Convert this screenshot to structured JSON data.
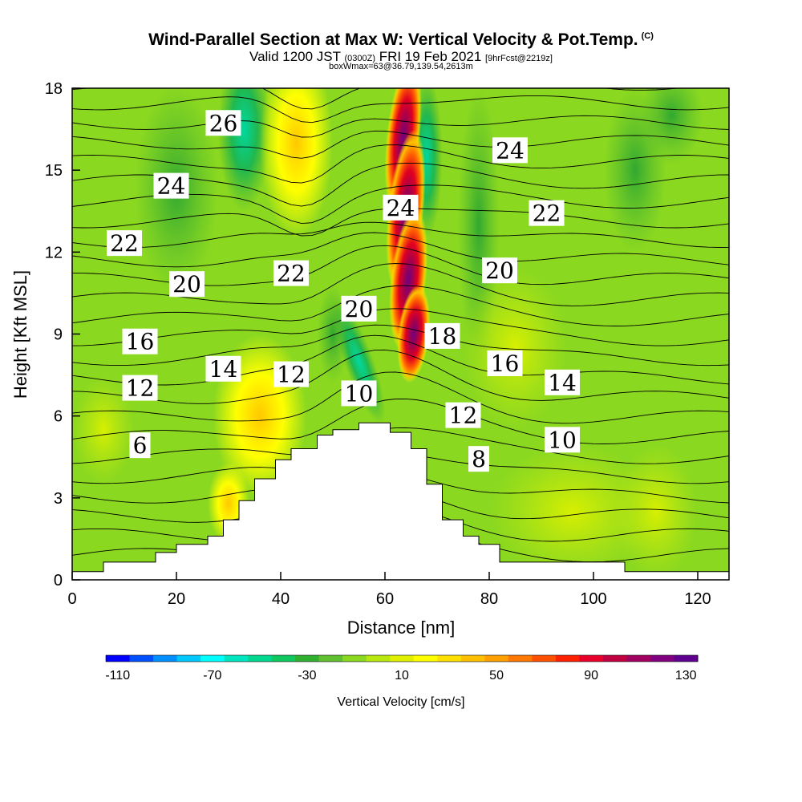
{
  "header": {
    "title": "Wind-Parallel Section at Max W: Vertical Velocity & Pot.Temp.",
    "copyright": "(C)",
    "valid_prefix": "Valid 1200 JST",
    "valid_utc": "(0300Z)",
    "valid_date": "FRI 19 Feb 2021",
    "forecast": "[9hrFcst@2219z]",
    "box_info": "boxWmax=63@36.79,139.54,2613m"
  },
  "chart_data": {
    "type": "heatmap",
    "xlabel": "Distance [nm]",
    "ylabel": "Height [Kft MSL]",
    "xlim": [
      0,
      126
    ],
    "ylim": [
      0,
      18
    ],
    "x_ticks": [
      0,
      20,
      40,
      60,
      80,
      100,
      120
    ],
    "y_ticks": [
      0,
      3,
      6,
      9,
      12,
      15,
      18
    ],
    "grid": false,
    "terrain_profile": [
      [
        0,
        0.3
      ],
      [
        6,
        0.3
      ],
      [
        6,
        0.65
      ],
      [
        16,
        0.65
      ],
      [
        16,
        1
      ],
      [
        20,
        1
      ],
      [
        20,
        1.3
      ],
      [
        26,
        1.3
      ],
      [
        26,
        1.6
      ],
      [
        29,
        1.6
      ],
      [
        29,
        2.2
      ],
      [
        32,
        2.2
      ],
      [
        32,
        2.9
      ],
      [
        35,
        2.9
      ],
      [
        35,
        3.7
      ],
      [
        39,
        3.7
      ],
      [
        39,
        4.4
      ],
      [
        42,
        4.4
      ],
      [
        42,
        4.8
      ],
      [
        47,
        4.8
      ],
      [
        47,
        5.3
      ],
      [
        50,
        5.3
      ],
      [
        50,
        5.5
      ],
      [
        55,
        5.5
      ],
      [
        55,
        5.75
      ],
      [
        61,
        5.75
      ],
      [
        61,
        5.4
      ],
      [
        65,
        5.4
      ],
      [
        65,
        4.8
      ],
      [
        68,
        4.8
      ],
      [
        68,
        3.5
      ],
      [
        71,
        3.5
      ],
      [
        71,
        2.2
      ],
      [
        75,
        2.2
      ],
      [
        75,
        1.6
      ],
      [
        78,
        1.6
      ],
      [
        78,
        1.3
      ],
      [
        82,
        1.3
      ],
      [
        82,
        0.65
      ],
      [
        106,
        0.65
      ],
      [
        106,
        0.3
      ],
      [
        126,
        0.3
      ]
    ],
    "updraft_core": {
      "x_center": 64,
      "peak_value": 130,
      "units": "cm/s"
    },
    "isentrope_labels": [
      {
        "text": "26",
        "x": 29,
        "y": 16.7
      },
      {
        "text": "24",
        "x": 19,
        "y": 14.4
      },
      {
        "text": "22",
        "x": 10,
        "y": 12.3
      },
      {
        "text": "20",
        "x": 22,
        "y": 10.8
      },
      {
        "text": "16",
        "x": 13,
        "y": 8.7
      },
      {
        "text": "12",
        "x": 13,
        "y": 7.0
      },
      {
        "text": "6",
        "x": 13,
        "y": 4.9
      },
      {
        "text": "14",
        "x": 29,
        "y": 7.7
      },
      {
        "text": "12",
        "x": 42,
        "y": 7.5
      },
      {
        "text": "22",
        "x": 42,
        "y": 11.2
      },
      {
        "text": "20",
        "x": 55,
        "y": 9.9
      },
      {
        "text": "10",
        "x": 55,
        "y": 6.8
      },
      {
        "text": "24",
        "x": 63,
        "y": 13.6
      },
      {
        "text": "18",
        "x": 71,
        "y": 8.9
      },
      {
        "text": "12",
        "x": 75,
        "y": 6.0
      },
      {
        "text": "8",
        "x": 78,
        "y": 4.4
      },
      {
        "text": "24",
        "x": 84,
        "y": 15.7
      },
      {
        "text": "22",
        "x": 91,
        "y": 13.4
      },
      {
        "text": "20",
        "x": 82,
        "y": 11.3
      },
      {
        "text": "16",
        "x": 83,
        "y": 7.9
      },
      {
        "text": "14",
        "x": 94,
        "y": 7.2
      },
      {
        "text": "10",
        "x": 94,
        "y": 5.1
      }
    ],
    "colorbar": {
      "label": "Vertical Velocity [cm/s]",
      "tick_labels": [
        "-110",
        "-70",
        "-30",
        "10",
        "50",
        "90",
        "130"
      ],
      "colors": [
        "#0000ff",
        "#0050ff",
        "#0090ff",
        "#00c8ff",
        "#00ffff",
        "#00e6c0",
        "#00d890",
        "#10c860",
        "#30b030",
        "#60c030",
        "#8ad820",
        "#b8e810",
        "#e0f000",
        "#ffff00",
        "#ffe000",
        "#ffc000",
        "#ffa000",
        "#ff7800",
        "#ff5000",
        "#ff2000",
        "#e8002a",
        "#c00040",
        "#a00060",
        "#800080",
        "#600090"
      ]
    }
  }
}
